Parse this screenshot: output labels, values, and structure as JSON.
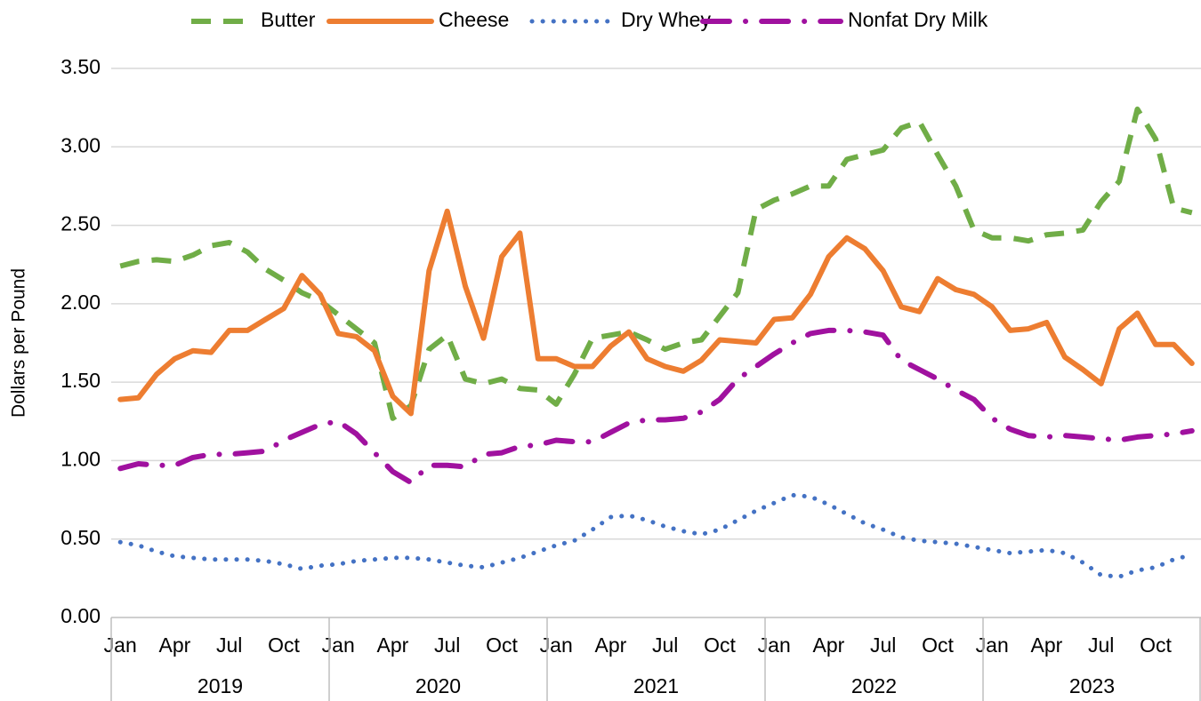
{
  "chart_data": {
    "type": "line",
    "y_axis_label": "Dollars per Pound",
    "categories": [
      "Jan",
      null,
      null,
      "Apr",
      null,
      null,
      "Jul",
      null,
      null,
      "Oct",
      null,
      null,
      "Jan",
      null,
      null,
      "Apr",
      null,
      null,
      "Jul",
      null,
      null,
      "Oct",
      null,
      null,
      "Jan",
      null,
      null,
      "Apr",
      null,
      null,
      "Jul",
      null,
      null,
      "Oct",
      null,
      null,
      "Jan",
      null,
      null,
      "Apr",
      null,
      null,
      "Jul",
      null,
      null,
      "Oct",
      null,
      null,
      "Jan",
      null,
      null,
      "Apr",
      null,
      null,
      "Jul",
      null,
      null,
      "Oct",
      null,
      null
    ],
    "category_groups": [
      "2019",
      "2020",
      "2021",
      "2022",
      "2023"
    ],
    "ylim": [
      0,
      3.5
    ],
    "yticks": [
      {
        "value": 0,
        "label": "0.00"
      },
      {
        "value": 0.5,
        "label": "0.50"
      },
      {
        "value": 1,
        "label": "1.00"
      },
      {
        "value": 1.5,
        "label": "1.50"
      },
      {
        "value": 2,
        "label": "2.00"
      },
      {
        "value": 2.5,
        "label": "2.50"
      },
      {
        "value": 3,
        "label": "3.00"
      },
      {
        "value": 3.5,
        "label": "3.50"
      }
    ],
    "grid": true,
    "legend": "top",
    "series": [
      {
        "name": "Butter",
        "color": "#70ad47",
        "dash": "dashed",
        "values": [
          2.24,
          2.27,
          2.28,
          2.27,
          2.31,
          2.37,
          2.39,
          2.33,
          2.22,
          2.15,
          2.07,
          2.02,
          1.93,
          1.84,
          1.75,
          1.27,
          1.35,
          1.71,
          1.8,
          1.52,
          1.49,
          1.52,
          1.46,
          1.45,
          1.36,
          1.55,
          1.78,
          1.8,
          1.82,
          1.77,
          1.71,
          1.75,
          1.77,
          1.92,
          2.07,
          2.6,
          2.66,
          2.7,
          2.75,
          2.75,
          2.92,
          2.95,
          2.98,
          3.12,
          3.16,
          2.95,
          2.75,
          2.47,
          2.42,
          2.42,
          2.4,
          2.44,
          2.45,
          2.47,
          2.65,
          2.78,
          3.24,
          3.05,
          2.61,
          2.58
        ]
      },
      {
        "name": "Cheese",
        "color": "#ed7d31",
        "dash": "solid",
        "values": [
          1.39,
          1.4,
          1.55,
          1.65,
          1.7,
          1.69,
          1.83,
          1.83,
          1.9,
          1.97,
          2.18,
          2.06,
          1.81,
          1.79,
          1.7,
          1.41,
          1.3,
          2.21,
          2.59,
          2.11,
          1.78,
          2.3,
          2.45,
          1.65,
          1.65,
          1.6,
          1.6,
          1.73,
          1.82,
          1.65,
          1.6,
          1.57,
          1.64,
          1.77,
          1.76,
          1.75,
          1.9,
          1.91,
          2.06,
          2.3,
          2.42,
          2.35,
          2.21,
          1.98,
          1.95,
          2.16,
          2.09,
          2.06,
          1.98,
          1.83,
          1.84,
          1.88,
          1.66,
          1.58,
          1.49,
          1.84,
          1.94,
          1.74,
          1.74,
          1.62
        ]
      },
      {
        "name": "Dry Whey",
        "color": "#4472c4",
        "dash": "dotted",
        "values": [
          0.48,
          0.46,
          0.42,
          0.39,
          0.38,
          0.37,
          0.37,
          0.37,
          0.36,
          0.34,
          0.31,
          0.33,
          0.34,
          0.36,
          0.37,
          0.38,
          0.38,
          0.37,
          0.35,
          0.33,
          0.32,
          0.35,
          0.38,
          0.42,
          0.46,
          0.49,
          0.56,
          0.64,
          0.65,
          0.62,
          0.58,
          0.55,
          0.53,
          0.56,
          0.62,
          0.68,
          0.73,
          0.78,
          0.77,
          0.72,
          0.66,
          0.6,
          0.56,
          0.51,
          0.49,
          0.48,
          0.47,
          0.45,
          0.43,
          0.41,
          0.42,
          0.43,
          0.41,
          0.35,
          0.27,
          0.26,
          0.3,
          0.32,
          0.37,
          0.4
        ]
      },
      {
        "name": "Nonfat Dry Milk",
        "color": "#a0119f",
        "dash": "dashdot",
        "values": [
          0.95,
          0.98,
          0.97,
          0.97,
          1.02,
          1.04,
          1.04,
          1.05,
          1.06,
          1.13,
          1.18,
          1.23,
          1.25,
          1.17,
          1.05,
          0.93,
          0.86,
          0.97,
          0.97,
          0.96,
          1.04,
          1.05,
          1.09,
          1.1,
          1.13,
          1.12,
          1.12,
          1.18,
          1.24,
          1.26,
          1.26,
          1.27,
          1.31,
          1.39,
          1.52,
          1.6,
          1.68,
          1.75,
          1.81,
          1.83,
          1.83,
          1.82,
          1.8,
          1.64,
          1.58,
          1.52,
          1.45,
          1.39,
          1.27,
          1.2,
          1.16,
          1.15,
          1.16,
          1.15,
          1.14,
          1.13,
          1.15,
          1.16,
          1.17,
          1.19
        ]
      }
    ]
  }
}
